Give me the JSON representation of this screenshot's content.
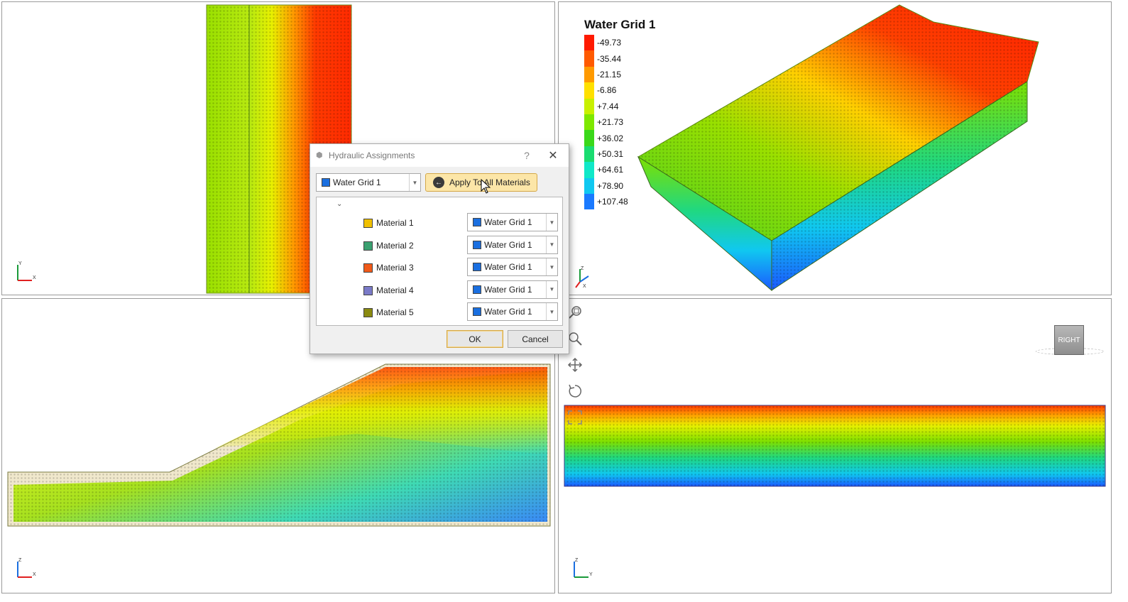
{
  "legend": {
    "title": "Water Grid 1",
    "entries": [
      {
        "label": "-49.73",
        "color": "#ff1a00"
      },
      {
        "label": "-35.44",
        "color": "#ff5a00"
      },
      {
        "label": "-21.15",
        "color": "#ff9a00"
      },
      {
        "label": "-6.86",
        "color": "#ffe000"
      },
      {
        "label": "+7.44",
        "color": "#c8f000"
      },
      {
        "label": "+21.73",
        "color": "#7ee800"
      },
      {
        "label": "+36.02",
        "color": "#3ad81a"
      },
      {
        "label": "+50.31",
        "color": "#1adc70"
      },
      {
        "label": "+64.61",
        "color": "#10e8c8"
      },
      {
        "label": "+78.90",
        "color": "#10c8f0"
      },
      {
        "label": "+107.48",
        "color": "#1a7aff"
      }
    ]
  },
  "axes": {
    "tl": {
      "a": "Y",
      "b": "X"
    },
    "tr": {
      "a": "Z",
      "b": "X"
    },
    "bl": {
      "a": "Z",
      "b": "X"
    },
    "br": {
      "a": "Z",
      "b": "Y"
    }
  },
  "view_cube": {
    "face_label": "RIGHT"
  },
  "nav_tools": [
    "zoom-window-icon",
    "zoom-icon",
    "pan-icon",
    "rotate-icon",
    "zoom-extents-icon"
  ],
  "dialog": {
    "title": "Hydraulic Assignments",
    "help_glyph": "?",
    "close_glyph": "✕",
    "grid_combo": {
      "value": "Water Grid 1",
      "color": "#1a6fe0"
    },
    "apply_label": "Apply To All Materials",
    "materials": [
      {
        "label": "Material 1",
        "color": "#f0c000",
        "grid": "Water Grid 1"
      },
      {
        "label": "Material 2",
        "color": "#3aa070",
        "grid": "Water Grid 1"
      },
      {
        "label": "Material 3",
        "color": "#f05a1a",
        "grid": "Water Grid 1"
      },
      {
        "label": "Material 4",
        "color": "#7a7ac8",
        "grid": "Water Grid 1"
      },
      {
        "label": "Material 5",
        "color": "#8a8a10",
        "grid": "Water Grid 1"
      }
    ],
    "ok_label": "OK",
    "cancel_label": "Cancel"
  }
}
